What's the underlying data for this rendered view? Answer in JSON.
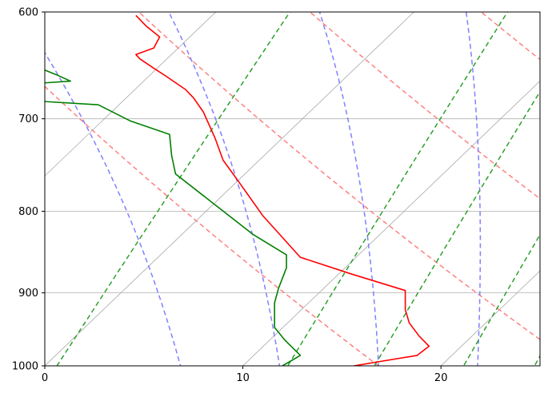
{
  "chart_data": {
    "type": "line",
    "title": "",
    "xlabel": "",
    "ylabel": "",
    "x_axis": {
      "min": 0,
      "max": 25,
      "ticks": [
        0,
        10,
        20
      ],
      "tick_labels": [
        "0",
        "10",
        "20"
      ]
    },
    "y_axis": {
      "scale": "log",
      "inverted": true,
      "min": 600,
      "max": 1000,
      "ticks": [
        600,
        700,
        800,
        900,
        1000
      ],
      "tick_labels": [
        "600",
        "700",
        "800",
        "900",
        "1000"
      ]
    },
    "grid": {
      "horizontal": true,
      "skewed_isotherms": true
    },
    "skew": {
      "slope_x_per_log10_p": 84
    },
    "series": [
      {
        "color": "#ff0000",
        "style": "solid",
        "points": [
          [
            15.6,
            1000
          ],
          [
            18.8,
            985
          ],
          [
            19.4,
            972
          ],
          [
            18.9,
            958
          ],
          [
            18.4,
            940
          ],
          [
            18.2,
            922
          ],
          [
            18.2,
            897
          ],
          [
            15.5,
            876
          ],
          [
            12.9,
            855
          ],
          [
            11.0,
            805
          ],
          [
            9.9,
            770
          ],
          [
            9.0,
            743
          ],
          [
            8.6,
            720
          ],
          [
            8.0,
            693
          ],
          [
            7.5,
            679
          ],
          [
            7.1,
            671
          ],
          [
            6.1,
            658
          ],
          [
            5.6,
            652
          ],
          [
            4.8,
            642
          ],
          [
            4.6,
            638
          ],
          [
            5.5,
            632
          ],
          [
            5.8,
            622
          ],
          [
            5.1,
            612
          ],
          [
            4.6,
            603
          ]
        ]
      },
      {
        "color": "#008000",
        "style": "solid",
        "points": [
          [
            12.0,
            1000
          ],
          [
            12.9,
            985
          ],
          [
            12.1,
            963
          ],
          [
            11.6,
            946
          ],
          [
            11.6,
            930
          ],
          [
            11.6,
            913
          ],
          [
            11.8,
            894
          ],
          [
            12.2,
            868
          ],
          [
            12.2,
            852
          ],
          [
            10.5,
            827
          ],
          [
            6.6,
            758
          ],
          [
            6.4,
            738
          ],
          [
            6.3,
            716
          ],
          [
            4.3,
            702
          ],
          [
            2.7,
            686
          ],
          [
            -2.4,
            680
          ],
          [
            -3.4,
            669
          ],
          [
            1.3,
            663
          ],
          [
            0.6,
            657
          ],
          [
            -0.2,
            651
          ],
          [
            -0.7,
            647
          ],
          [
            -2.3,
            644
          ],
          [
            -5.8,
            643
          ],
          [
            -6.6,
            642
          ]
        ]
      }
    ],
    "isotherms": {
      "color": "#a8a8a8",
      "style": "solid",
      "temps": [
        -60,
        -50,
        -40,
        -30,
        -20,
        -10,
        0,
        10,
        20,
        30
      ]
    },
    "dry_adiabats": {
      "color": "#ff8080",
      "style": "dashed",
      "theta": [
        290,
        300,
        310,
        320,
        330
      ]
    },
    "moist_adiabats": {
      "color": "#8080ff",
      "style": "dashed",
      "theta_w": [
        280,
        285,
        290,
        295,
        300
      ]
    },
    "mixing_ratio_lines": {
      "color": "#2ca02c",
      "style": "dashed",
      "w": [
        4,
        9,
        12,
        16,
        20,
        30
      ]
    }
  }
}
